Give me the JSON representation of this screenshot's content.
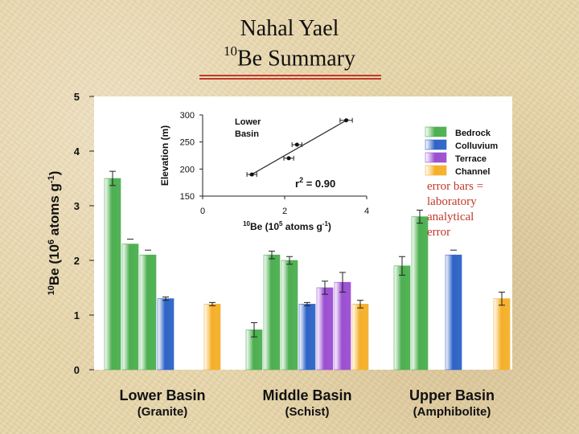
{
  "title": {
    "line1": "Nahal Yael",
    "line2_sup": "10",
    "line2_rest": "Be Summary"
  },
  "colors": {
    "bedrock": "#4caf50",
    "colluvium": "#2e63c7",
    "terrace": "#9b4fd1",
    "channel": "#f5b02a",
    "error_note": "#c0392b",
    "title_rule": "#c0392b"
  },
  "chart_data": [
    {
      "type": "bar",
      "ylabel": "10Be (10^6 atoms g^-1)",
      "ylim": [
        0,
        5
      ],
      "yticks": [
        0,
        1,
        2,
        3,
        4,
        5
      ],
      "grid": false,
      "legend_position": "top-right",
      "groups": [
        {
          "name": "Lower Basin",
          "subname": "(Granite)",
          "bars": [
            {
              "type": "Bedrock",
              "value": 3.5,
              "error": 0.13
            },
            {
              "type": "Bedrock",
              "value": 2.3,
              "error": 0.0
            },
            {
              "type": "Bedrock",
              "value": 2.1,
              "error": 0.0
            },
            {
              "type": "Colluvium",
              "value": 1.3,
              "error": 0.03
            },
            {
              "type": "Channel",
              "value": 1.2,
              "error": 0.03
            }
          ]
        },
        {
          "name": "Middle Basin",
          "subname": "(Schist)",
          "bars": [
            {
              "type": "Bedrock",
              "value": 0.73,
              "error": 0.13
            },
            {
              "type": "Bedrock",
              "value": 2.1,
              "error": 0.07
            },
            {
              "type": "Bedrock",
              "value": 2.0,
              "error": 0.07
            },
            {
              "type": "Colluvium",
              "value": 1.2,
              "error": 0.03
            },
            {
              "type": "Terrace",
              "value": 1.5,
              "error": 0.12
            },
            {
              "type": "Terrace",
              "value": 1.6,
              "error": 0.18
            },
            {
              "type": "Channel",
              "value": 1.2,
              "error": 0.07
            }
          ]
        },
        {
          "name": "Upper Basin",
          "subname": "(Amphibolite)",
          "bars": [
            {
              "type": "Bedrock",
              "value": 1.9,
              "error": 0.17
            },
            {
              "type": "Bedrock",
              "value": 2.8,
              "error": 0.12
            },
            {
              "type": "Colluvium",
              "value": 2.1,
              "error": 0.0
            },
            {
              "type": "Channel",
              "value": 1.3,
              "error": 0.12
            }
          ]
        }
      ],
      "legend": [
        "Bedrock",
        "Colluvium",
        "Terrace",
        "Channel"
      ],
      "annotation": [
        "error bars =",
        "laboratory",
        "analytical",
        "error"
      ]
    },
    {
      "type": "scatter",
      "title_lines": [
        "Lower",
        "Basin"
      ],
      "xlabel": "10Be (10^5 atoms g^-1)",
      "ylabel": "Elevation (m)",
      "xlim": [
        0,
        4
      ],
      "xticks": [
        0,
        2,
        4
      ],
      "ylim": [
        150,
        300
      ],
      "yticks": [
        150,
        200,
        250,
        300
      ],
      "points": [
        {
          "x": 1.2,
          "y": 190,
          "xerr": 0.12
        },
        {
          "x": 2.1,
          "y": 220,
          "xerr": 0.12
        },
        {
          "x": 2.3,
          "y": 245,
          "xerr": 0.12
        },
        {
          "x": 3.5,
          "y": 290,
          "xerr": 0.15
        }
      ],
      "fit_line": [
        [
          1.15,
          188
        ],
        [
          3.55,
          292
        ]
      ],
      "r2_label": "r",
      "r2_sup": "2",
      "r2_text": " = 0.90"
    }
  ]
}
